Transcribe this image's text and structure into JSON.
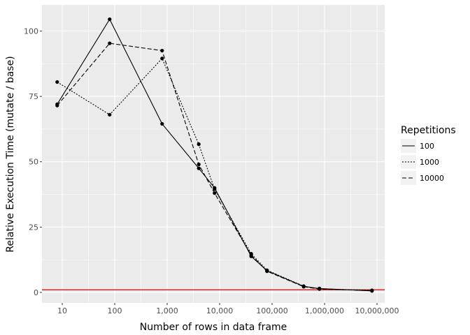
{
  "chart_data": {
    "type": "line",
    "xlabel": "Number of rows in data frame",
    "ylabel": "Relative Execution Time (mutate / base)",
    "x_scale": "log10",
    "xlim": [
      4.1,
      14000000
    ],
    "ylim": [
      -4,
      110
    ],
    "x_ticks": [
      10,
      100,
      1000,
      10000,
      100000,
      1000000,
      10000000
    ],
    "x_tick_labels": [
      "10",
      "100",
      "1,000",
      "10,000",
      "100,000",
      "1,000,000",
      "10,000,000"
    ],
    "y_ticks": [
      0,
      25,
      50,
      75,
      100
    ],
    "y_tick_labels": [
      "0",
      "25",
      "50",
      "75",
      "100"
    ],
    "reference_line": {
      "y": 1,
      "color": "#cc0000"
    },
    "legend": {
      "title": "Repetitions",
      "position": "right",
      "entries": [
        "100",
        "1000",
        "10000"
      ]
    },
    "grid": true,
    "panel_background": "#ebebeb",
    "series": [
      {
        "name": "100",
        "dash": "solid",
        "points": [
          [
            8,
            72
          ],
          [
            80,
            104.5
          ],
          [
            800,
            64.5
          ],
          [
            4000,
            47.5
          ],
          [
            8000,
            40
          ],
          [
            40000,
            13.8
          ],
          [
            80000,
            8.3
          ],
          [
            400000,
            2.3
          ],
          [
            800000,
            1.5
          ],
          [
            8000000,
            0.6
          ]
        ]
      },
      {
        "name": "1000",
        "dash": "dotted",
        "points": [
          [
            8,
            80.5
          ],
          [
            80,
            68
          ],
          [
            800,
            89.5
          ],
          [
            4000,
            56.7
          ],
          [
            8000,
            39.5
          ],
          [
            40000,
            14.8
          ],
          [
            80000,
            8.5
          ],
          [
            400000,
            2.4
          ],
          [
            800000,
            1.4
          ],
          [
            8000000,
            0.8
          ]
        ]
      },
      {
        "name": "10000",
        "dash": "dashed",
        "points": [
          [
            8,
            71.5
          ],
          [
            80,
            95.3
          ],
          [
            800,
            92.5
          ],
          [
            4000,
            49
          ],
          [
            8000,
            38
          ],
          [
            40000,
            14.3
          ],
          [
            80000,
            8.1
          ],
          [
            400000,
            2.2
          ],
          [
            800000,
            1.3
          ],
          [
            8000000,
            0.7
          ]
        ]
      }
    ]
  }
}
